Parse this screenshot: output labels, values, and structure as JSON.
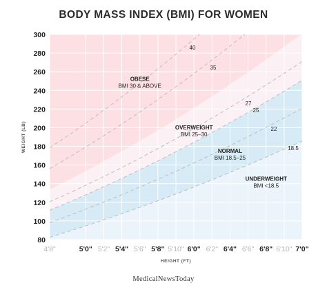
{
  "title": "BODY MASS INDEX (BMI) FOR WOMEN",
  "brand": "MedicalNewsToday",
  "colors": {
    "obese": "#fde0e3",
    "overweight": "#fbf0f3",
    "normal": "#d6ebf6",
    "underweight": "#ebf4fb",
    "dashed_line": "#bdbdbd",
    "grid": "#ffffff"
  },
  "chart_data": {
    "type": "area",
    "title": "BODY MASS INDEX (BMI) FOR WOMEN",
    "xlabel": "HEIGHT (FT)",
    "ylabel": "WEIGHT (LB)",
    "x_unit": "inches",
    "xlim": [
      56,
      84
    ],
    "ylim": [
      80,
      300
    ],
    "grid": true,
    "y_ticks": [
      "80",
      "100",
      "120",
      "140",
      "160",
      "180",
      "200",
      "220",
      "240",
      "260",
      "280",
      "300"
    ],
    "x_ticks": [
      {
        "label": "4'8\"",
        "inches": 56,
        "major": false
      },
      {
        "label": "5'0\"",
        "inches": 60,
        "major": true
      },
      {
        "label": "5'2\"",
        "inches": 62,
        "major": false
      },
      {
        "label": "5'4\"",
        "inches": 64,
        "major": true
      },
      {
        "label": "5'6\"",
        "inches": 66,
        "major": false
      },
      {
        "label": "5'8\"",
        "inches": 68,
        "major": true
      },
      {
        "label": "5'10\"",
        "inches": 70,
        "major": false
      },
      {
        "label": "6'0\"",
        "inches": 72,
        "major": true
      },
      {
        "label": "6'2\"",
        "inches": 74,
        "major": false
      },
      {
        "label": "6'4\"",
        "inches": 76,
        "major": true
      },
      {
        "label": "6'6\"",
        "inches": 78,
        "major": false
      },
      {
        "label": "6'8\"",
        "inches": 80,
        "major": true
      },
      {
        "label": "6'10\"",
        "inches": 82,
        "major": false
      },
      {
        "label": "7'0\"",
        "inches": 84,
        "major": true
      }
    ],
    "bands": [
      {
        "name": "OBESE",
        "range": "BMI 30 & ABOVE",
        "bmi_min": 30,
        "bmi_max": null,
        "label_at": [
          66,
          250
        ]
      },
      {
        "name": "OVERWEIGHT",
        "range": "BMI 25–30",
        "bmi_min": 25,
        "bmi_max": 30,
        "label_at": [
          72,
          198
        ]
      },
      {
        "name": "NORMAL",
        "range": "BMI 18.5–25",
        "bmi_min": 18.5,
        "bmi_max": 25,
        "label_at": [
          76,
          173
        ]
      },
      {
        "name": "UNDERWEIGHT",
        "range": "BMI <18.5",
        "bmi_min": null,
        "bmi_max": 18.5,
        "label_at": [
          80,
          143
        ]
      }
    ],
    "bmi_lines": [
      {
        "bmi": 40,
        "label": "40"
      },
      {
        "bmi": 35,
        "label": "35"
      },
      {
        "bmi": 27,
        "label": "27"
      },
      {
        "bmi": 25,
        "label": "25"
      },
      {
        "bmi": 22,
        "label": "22"
      },
      {
        "bmi": 18.5,
        "label": "18.5"
      }
    ]
  }
}
